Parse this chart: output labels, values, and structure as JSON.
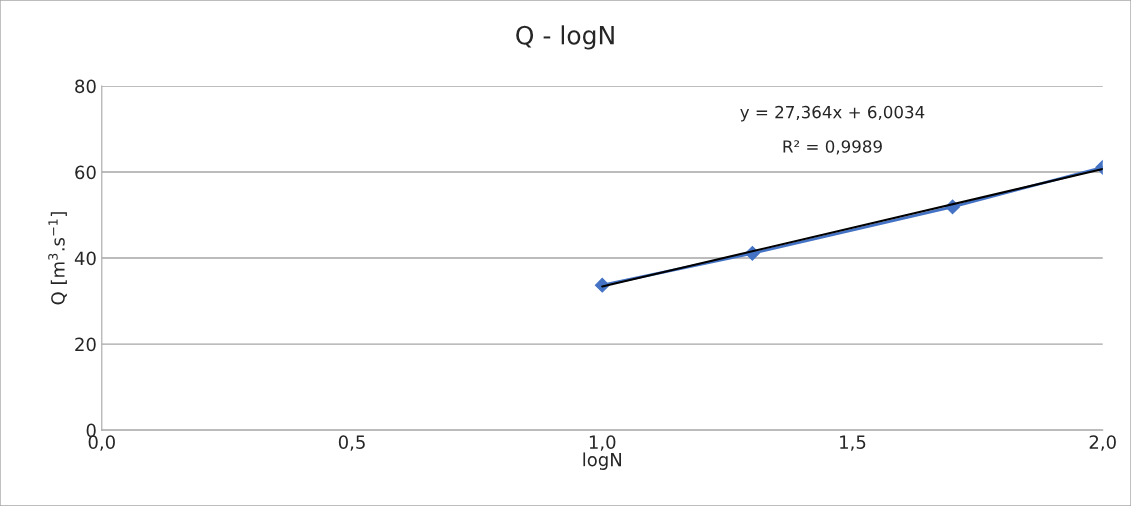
{
  "chart_data": {
    "type": "line",
    "title": "Q - logN",
    "xlabel": "logN",
    "ylabel": "Q [m$^{3}$.s$^{−1}$]",
    "x": [
      1.0,
      1.3,
      1.7,
      2.0
    ],
    "series": [
      {
        "color": "#4472c4",
        "marker": "diamond",
        "line_style": "solid",
        "values": [
          33.7,
          41.1,
          51.9,
          61.1
        ]
      },
      {
        "color": "#000000",
        "marker": "none",
        "line_style": "solid",
        "x": [
          1.0,
          2.0
        ],
        "values": [
          33.4,
          60.7
        ]
      }
    ],
    "xlim": [
      0,
      2
    ],
    "xticks": [
      {
        "value": 0,
        "label": "0,0"
      },
      {
        "value": 0.5,
        "label": "0,5"
      },
      {
        "value": 1,
        "label": "1,0"
      },
      {
        "value": 1.5,
        "label": "1,5"
      },
      {
        "value": 2,
        "label": "2,0"
      }
    ],
    "ylim": [
      0,
      80
    ],
    "yticks": [
      0,
      20,
      40,
      60,
      80
    ],
    "grid": "y",
    "legend": false,
    "annotations": [
      "y = 27,364x + 6,0034",
      "R² = 0,9989"
    ]
  }
}
